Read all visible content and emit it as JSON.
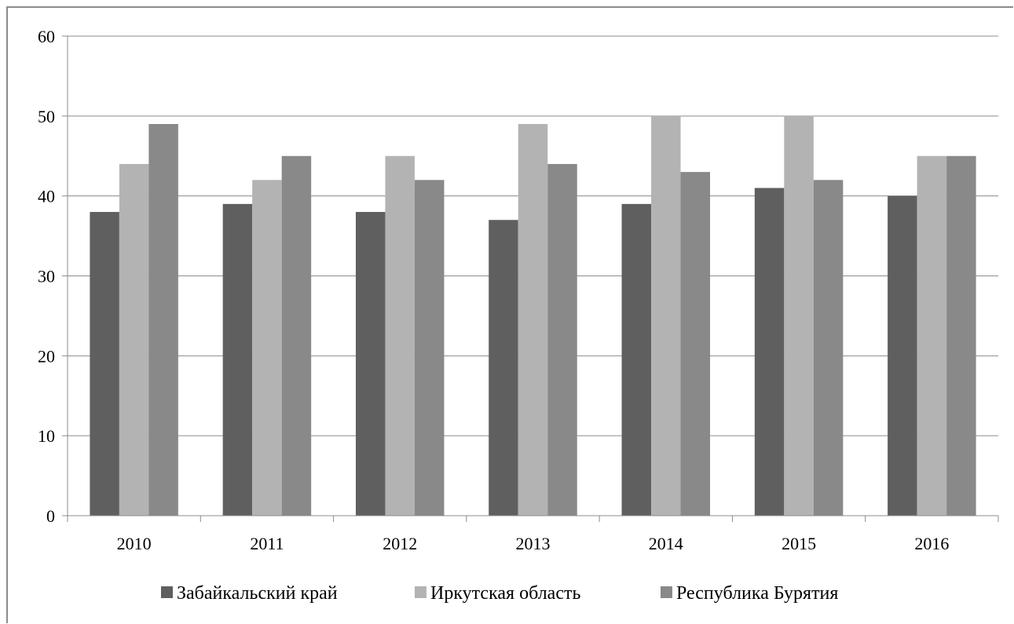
{
  "chart_data": {
    "type": "bar",
    "title": "",
    "xlabel": "",
    "ylabel": "",
    "ylim": [
      0,
      60
    ],
    "yticks": [
      0,
      10,
      20,
      30,
      40,
      50,
      60
    ],
    "grid": true,
    "legend_position": "bottom",
    "categories": [
      "2010",
      "2011",
      "2012",
      "2013",
      "2014",
      "2015",
      "2016"
    ],
    "series": [
      {
        "name": "Забайкальский край",
        "color": "#5f5f5f",
        "values": [
          38,
          39,
          38,
          37,
          39,
          41,
          40
        ]
      },
      {
        "name": "Иркутская область",
        "color": "#b3b3b3",
        "values": [
          44,
          42,
          45,
          49,
          50,
          50,
          45
        ]
      },
      {
        "name": "Республика Бурятия",
        "color": "#898989",
        "values": [
          49,
          45,
          42,
          44,
          43,
          42,
          45
        ]
      }
    ]
  }
}
